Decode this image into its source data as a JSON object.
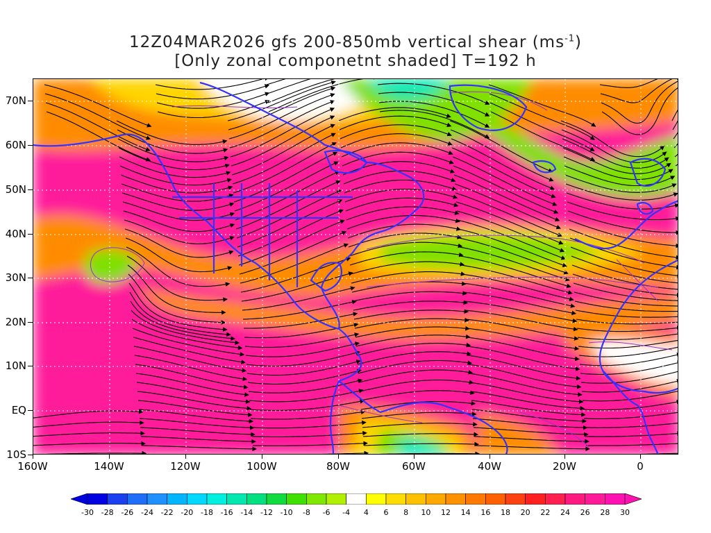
{
  "title_line1_prefix": "12Z04MAR2026 gfs 200-850mb vertical shear (ms",
  "title_line1_sup": "-1",
  "title_line1_suffix": ")",
  "title_line2": "[Only zonal componetnt shaded] T=192 h",
  "y_axis_labels": [
    "70N",
    "60N",
    "50N",
    "40N",
    "30N",
    "20N",
    "10N",
    "EQ",
    "10S"
  ],
  "x_axis_labels": [
    "160W",
    "140W",
    "120W",
    "100W",
    "80W",
    "60W",
    "40W",
    "20W",
    "0"
  ],
  "colorbar_labels": [
    "-30",
    "-28",
    "-26",
    "-24",
    "-22",
    "-20",
    "-18",
    "-16",
    "-14",
    "-12",
    "-10",
    "-8",
    "-6",
    "-4",
    "4",
    "6",
    "8",
    "10",
    "12",
    "14",
    "16",
    "18",
    "20",
    "22",
    "24",
    "26",
    "28",
    "30"
  ],
  "colorbar_colors": [
    "#0000e0",
    "#1a40f0",
    "#1e6ef8",
    "#1e90ff",
    "#00b4ff",
    "#00d8ff",
    "#00f0e0",
    "#00e8b0",
    "#00e080",
    "#10dc40",
    "#40e000",
    "#80e800",
    "#b0f000",
    "#ffffff",
    "#ffff00",
    "#ffdd00",
    "#ffc000",
    "#ffa800",
    "#ff9000",
    "#ff7800",
    "#ff6000",
    "#ff4010",
    "#ff2020",
    "#ff2050",
    "#ff1a80",
    "#ff1a9a",
    "#ff10b0"
  ],
  "colors": {
    "magenta": "#ff1a9a",
    "orange": "#ff8c00",
    "yellow": "#ffd400",
    "green": "#80e000",
    "cyan": "#00e8b0",
    "coast": "#3333ff",
    "streamline": "#000000",
    "contour": "#9933cc"
  }
}
